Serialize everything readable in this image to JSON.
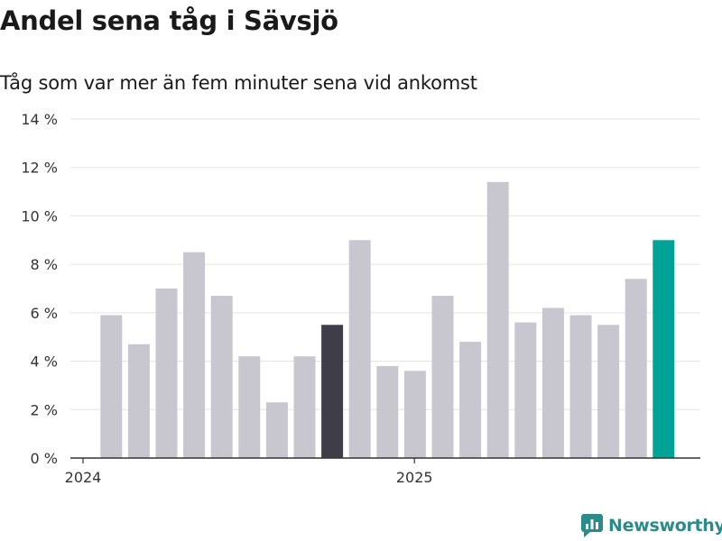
{
  "title": "Andel sena tåg i Sävsjö",
  "subtitle": "Tåg som var mer än fem minuter sena vid ankomst",
  "brand": {
    "name": "Newsworthy",
    "icon": "newsworthy-logo-icon"
  },
  "colors": {
    "default_bar": "#c8c7cf",
    "highlight_bar": "#3f3d48",
    "latest_bar": "#00a396",
    "grid": "#e3e3e3",
    "axis": "#333333",
    "brand": "#2a8c8a"
  },
  "chart_data": {
    "type": "bar",
    "title": "Andel sena tåg i Sävsjö",
    "subtitle": "Tåg som var mer än fem minuter sena vid ankomst",
    "x": [
      "2024-01",
      "2024-02",
      "2024-03",
      "2024-04",
      "2024-05",
      "2024-06",
      "2024-07",
      "2024-08",
      "2024-09",
      "2024-10",
      "2024-11",
      "2024-12",
      "2025-01",
      "2025-02",
      "2025-03",
      "2025-04",
      "2025-05",
      "2025-06",
      "2025-07",
      "2025-08",
      "2025-09",
      "2025-10"
    ],
    "values": [
      5.9,
      4.7,
      7.0,
      8.5,
      6.7,
      4.2,
      2.3,
      4.2,
      5.5,
      9.0,
      3.8,
      3.6,
      6.7,
      4.8,
      11.4,
      5.6,
      6.2,
      5.9,
      5.5,
      7.4,
      9.0,
      null
    ],
    "highlight": {
      "2024-09": "dark",
      "2025-09": "latest"
    },
    "ylim": [
      0,
      14
    ],
    "yticks": [
      0,
      2,
      4,
      6,
      8,
      10,
      12,
      14
    ],
    "ytick_labels": [
      "0 %",
      "2 %",
      "4 %",
      "6 %",
      "8 %",
      "10 %",
      "12 %",
      "14 %"
    ],
    "xtick_labels": [
      {
        "at": "2024-01",
        "label": "2024"
      },
      {
        "at": "2025-01",
        "label": "2025"
      }
    ],
    "xlabel": "",
    "ylabel": "",
    "grid": true
  }
}
